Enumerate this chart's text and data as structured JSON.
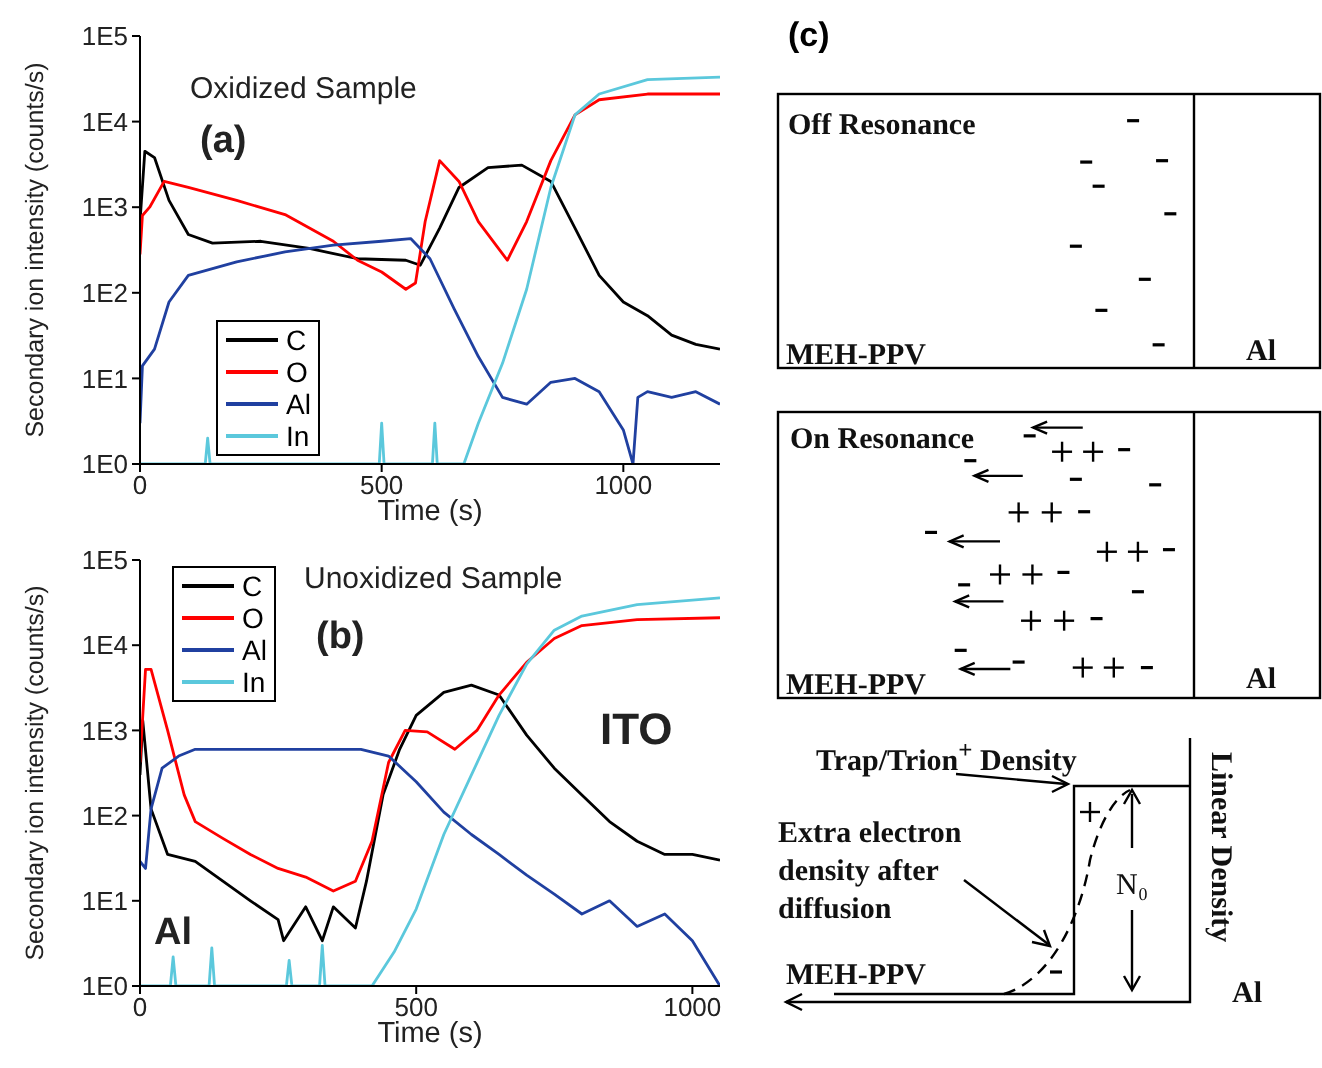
{
  "chart_data": [
    {
      "type": "line",
      "xlabel": "Time (s)",
      "ylabel": "Secondary ion intensity (counts/s)",
      "log": "y",
      "legend": "bottom left",
      "annotations": [
        "Oxidized Sample",
        "(a)"
      ],
      "xlim": [
        0,
        1200
      ],
      "xticks": [
        0,
        500,
        1000
      ],
      "ylim": [
        1,
        100000
      ],
      "yticks": [
        {
          "value": 1,
          "label": "1E0"
        },
        {
          "value": 10,
          "label": "1E1"
        },
        {
          "value": 100,
          "label": "1E2"
        },
        {
          "value": 1000,
          "label": "1E3"
        },
        {
          "value": 10000,
          "label": "1E4"
        },
        {
          "value": 100000,
          "label": "1E5"
        }
      ],
      "series": [
        {
          "name": "C",
          "color": "#000000",
          "x": [
            0,
            10,
            30,
            60,
            100,
            150,
            250,
            350,
            450,
            550,
            580,
            620,
            660,
            720,
            790,
            850,
            900,
            950,
            1000,
            1050,
            1100,
            1150,
            1200
          ],
          "values": [
            680,
            4500,
            3800,
            1200,
            480,
            380,
            400,
            330,
            250,
            240,
            210,
            570,
            1700,
            2900,
            3100,
            2000,
            570,
            160,
            78,
            54,
            32,
            25,
            22
          ]
        },
        {
          "name": "O",
          "color": "#ff0000",
          "x": [
            0,
            5,
            20,
            50,
            100,
            200,
            300,
            400,
            450,
            500,
            550,
            570,
            590,
            620,
            660,
            700,
            760,
            800,
            850,
            900,
            950,
            1050,
            1200
          ],
          "values": [
            280,
            800,
            1000,
            2000,
            1700,
            1200,
            820,
            400,
            240,
            175,
            110,
            130,
            680,
            3500,
            2000,
            680,
            240,
            680,
            3500,
            12000,
            18000,
            21000,
            21000
          ]
        },
        {
          "name": "Al",
          "color": "#2040a0",
          "x": [
            0,
            5,
            30,
            60,
            100,
            200,
            300,
            400,
            500,
            560,
            600,
            650,
            700,
            750,
            800,
            850,
            900,
            950,
            1000,
            1020,
            1030,
            1050,
            1100,
            1150,
            1200
          ],
          "values": [
            3,
            14,
            22,
            78,
            160,
            230,
            300,
            360,
            400,
            430,
            250,
            65,
            18,
            6,
            5,
            9,
            10,
            7,
            2.5,
            1,
            6,
            7,
            6,
            7,
            5
          ]
        },
        {
          "name": "In",
          "color": "#5bc8dc",
          "x": [
            0,
            135,
            140,
            145,
            495,
            500,
            505,
            605,
            610,
            615,
            670,
            700,
            750,
            800,
            850,
            900,
            950,
            1050,
            1200
          ],
          "values": [
            1,
            1,
            2,
            1,
            1,
            3,
            1,
            1,
            3,
            1,
            1,
            3,
            15,
            110,
            1700,
            12000,
            21000,
            31000,
            33000
          ]
        }
      ]
    },
    {
      "type": "line",
      "xlabel": "Time (s)",
      "ylabel": "Secondary ion intensity (counts/s)",
      "log": "y",
      "legend": "top left",
      "annotations": [
        "Unoxidized Sample",
        "(b)",
        "ITO",
        "Al"
      ],
      "xlim": [
        0,
        1050
      ],
      "xticks": [
        0,
        500,
        1000
      ],
      "ylim": [
        1,
        100000
      ],
      "yticks": [
        {
          "value": 1,
          "label": "1E0"
        },
        {
          "value": 10,
          "label": "1E1"
        },
        {
          "value": 100,
          "label": "1E2"
        },
        {
          "value": 1000,
          "label": "1E3"
        },
        {
          "value": 10000,
          "label": "1E4"
        },
        {
          "value": 100000,
          "label": "1E5"
        }
      ],
      "series": [
        {
          "name": "C",
          "color": "#000000",
          "x": [
            0,
            5,
            20,
            50,
            100,
            150,
            200,
            250,
            260,
            300,
            330,
            350,
            390,
            410,
            440,
            470,
            500,
            550,
            600,
            650,
            700,
            750,
            800,
            850,
            900,
            950,
            1000,
            1050
          ],
          "values": [
            300,
            1300,
            120,
            35,
            29,
            17,
            10,
            6,
            3.4,
            8.5,
            3.4,
            8.5,
            4.8,
            17,
            175,
            600,
            1500,
            2800,
            3400,
            2600,
            880,
            360,
            175,
            85,
            50,
            35,
            35,
            30
          ]
        },
        {
          "name": "O",
          "color": "#ff0000",
          "x": [
            0,
            10,
            20,
            50,
            80,
            100,
            150,
            200,
            250,
            300,
            350,
            390,
            420,
            450,
            480,
            520,
            570,
            610,
            650,
            700,
            750,
            800,
            900,
            1050
          ],
          "values": [
            420,
            5200,
            5200,
            1000,
            175,
            85,
            54,
            35,
            24,
            19,
            13,
            17,
            50,
            420,
            1000,
            960,
            600,
            1000,
            2600,
            6300,
            12000,
            17000,
            20000,
            21000
          ]
        },
        {
          "name": "Al",
          "color": "#2040a0",
          "x": [
            0,
            10,
            20,
            40,
            70,
            100,
            200,
            300,
            400,
            450,
            500,
            550,
            600,
            650,
            700,
            750,
            800,
            850,
            900,
            950,
            1000,
            1050
          ],
          "values": [
            29,
            24,
            120,
            360,
            500,
            600,
            600,
            600,
            600,
            500,
            250,
            110,
            60,
            35,
            20,
            12,
            7,
            10,
            5,
            7,
            3.4,
            1
          ]
        },
        {
          "name": "In",
          "color": "#5bc8dc",
          "x": [
            0,
            55,
            60,
            65,
            125,
            130,
            135,
            265,
            270,
            275,
            325,
            330,
            335,
            420,
            460,
            500,
            550,
            600,
            650,
            700,
            750,
            800,
            900,
            1050
          ],
          "values": [
            1,
            1,
            2.2,
            1,
            1,
            2.8,
            1,
            1,
            2,
            1,
            1,
            3,
            1,
            1,
            2.5,
            8,
            60,
            300,
            1500,
            6000,
            15000,
            22000,
            30000,
            36000
          ]
        }
      ]
    },
    {
      "type": "other",
      "title": "(c)",
      "annotations": [
        "Off Resonance",
        "MEH-PPV",
        "Al",
        "On Resonance",
        "MEH-PPV",
        "Al",
        "Trap/Trion$^{+}$ Density",
        "Linear Density",
        "Extra electron density after diffusion",
        "N₀",
        "MEH-PPV",
        "Al"
      ]
    }
  ]
}
